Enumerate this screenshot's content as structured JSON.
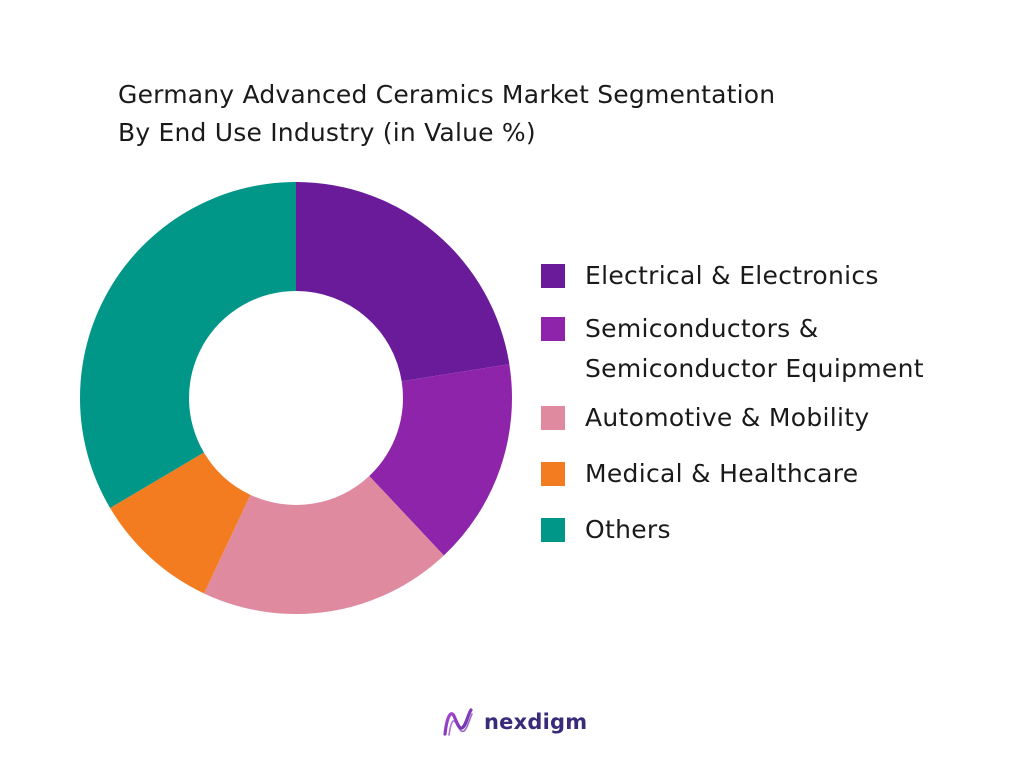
{
  "title_lines": [
    "Germany Advanced Ceramics Market Segmentation",
    "By End Use Industry (in Value %)"
  ],
  "chart_data": {
    "type": "pie",
    "donut": true,
    "title": "Germany Advanced Ceramics Market Segmentation By End Use Industry (in Value %)",
    "legend_position": "right",
    "slices": [
      {
        "label": "Electrical & Electronics",
        "value": 22.5,
        "color": "#6a1b9a"
      },
      {
        "label": "Semiconductors &\nSemiconductor Equipment",
        "value": 15.5,
        "color": "#8e24aa"
      },
      {
        "label": "Automotive & Mobility",
        "value": 19.0,
        "color": "#e08aa0"
      },
      {
        "label": "Medical & Healthcare",
        "value": 9.5,
        "color": "#f47c20"
      },
      {
        "label": "Others",
        "value": 33.5,
        "color": "#009688"
      }
    ]
  },
  "brand": {
    "name": "nexdigm",
    "logo_icon": "nexdigm-logo-icon"
  }
}
